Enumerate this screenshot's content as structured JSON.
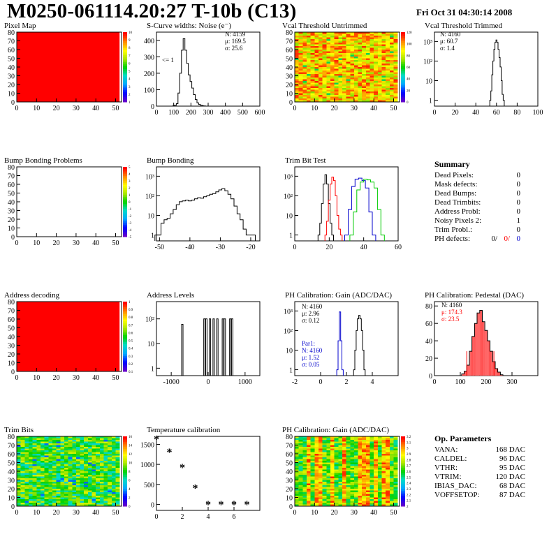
{
  "header": {
    "title": "M0250-061114.20:27 T-10b (C13)",
    "date": "Fri Oct 31 04:30:14 2008"
  },
  "panels": {
    "pixel_map": {
      "title": "Pixel Map",
      "xticks": [
        "0",
        "10",
        "20",
        "30",
        "40",
        "50"
      ],
      "yticks": [
        "0",
        "10",
        "20",
        "30",
        "40",
        "50",
        "60",
        "70",
        "80"
      ],
      "zticks": [
        "1",
        "2",
        "3",
        "4",
        "5",
        "6",
        "7",
        "8",
        "9",
        "10"
      ],
      "fill": "uniform-red"
    },
    "scurve": {
      "title": "S-Curve widths: Noise (e⁻)",
      "stats": [
        "N: 4159",
        "μ: 169.5",
        "σ: 25.6"
      ],
      "annotation": "<= 1",
      "xticks": [
        "0",
        "100",
        "200",
        "300",
        "400",
        "500",
        "600"
      ],
      "yticks": [
        "0",
        "100",
        "200",
        "300",
        "400"
      ]
    },
    "vcal_untrimmed": {
      "title": "Vcal Threshold Untrimmed",
      "xticks": [
        "0",
        "10",
        "20",
        "30",
        "40",
        "50"
      ],
      "yticks": [
        "0",
        "10",
        "20",
        "30",
        "40",
        "50",
        "60",
        "70",
        "80"
      ],
      "zticks": [
        "0",
        "20",
        "40",
        "60",
        "80",
        "100",
        "120"
      ],
      "fill": "noisy-orange"
    },
    "vcal_trimmed": {
      "title": "Vcal Threshold Trimmed",
      "stats": [
        "N: 4160",
        "μ: 60.7",
        "σ: 1.4"
      ],
      "xticks": [
        "0",
        "20",
        "40",
        "60",
        "80",
        "100"
      ],
      "yticks": [
        "1",
        "10",
        "10²",
        "10³"
      ]
    },
    "bump_problems": {
      "title": "Bump Bonding Problems",
      "xticks": [
        "0",
        "10",
        "20",
        "30",
        "40",
        "50"
      ],
      "yticks": [
        "0",
        "10",
        "20",
        "30",
        "40",
        "50",
        "60",
        "70",
        "80"
      ],
      "zticks": [
        "-5",
        "-4",
        "-3",
        "-2",
        "-1",
        "0",
        "1",
        "2",
        "3",
        "4",
        "5"
      ]
    },
    "bump_bonding": {
      "title": "Bump Bonding",
      "xticks": [
        "-50",
        "-40",
        "-30",
        "-20"
      ],
      "yticks": [
        "1",
        "10",
        "10²",
        "10³"
      ]
    },
    "trim_bit_test": {
      "title": "Trim Bit Test",
      "xticks": [
        "0",
        "20",
        "40",
        "60"
      ],
      "yticks": [
        "1",
        "10",
        "10²",
        "10³"
      ]
    },
    "address_decoding": {
      "title": "Address decoding",
      "xticks": [
        "0",
        "10",
        "20",
        "30",
        "40",
        "50"
      ],
      "yticks": [
        "0",
        "10",
        "20",
        "30",
        "40",
        "50",
        "60",
        "70",
        "80"
      ],
      "zticks": [
        "0.1",
        "0.2",
        "0.3",
        "0.4",
        "0.5",
        "0.6",
        "0.7",
        "0.8",
        "0.9",
        "1"
      ],
      "fill": "uniform-red"
    },
    "address_levels": {
      "title": "Address Levels",
      "xticks": [
        "-1000",
        "0",
        "1000"
      ],
      "yticks": [
        "1",
        "10",
        "10²"
      ]
    },
    "ph_gain": {
      "title": "PH Calibration: Gain (ADC/DAC)",
      "stats": [
        "N: 4160",
        "μ: 2.96",
        "σ: 0.12"
      ],
      "stats2": [
        "Par1:",
        "N: 4160",
        "μ: 1.52",
        "σ: 0.05"
      ],
      "xticks": [
        "-2",
        "0",
        "2",
        "4"
      ],
      "yticks": [
        "1",
        "10",
        "10²",
        "10³"
      ]
    },
    "ph_pedestal": {
      "title": "PH Calibration: Pedestal (DAC)",
      "stats": [
        "N: 4160",
        "μ: 174.3",
        "σ: 23.5"
      ],
      "xticks": [
        "0",
        "100",
        "200",
        "300"
      ],
      "yticks": [
        "0",
        "20",
        "40",
        "60",
        "80"
      ]
    },
    "trim_bits": {
      "title": "Trim Bits",
      "xticks": [
        "0",
        "10",
        "20",
        "30",
        "40",
        "50"
      ],
      "yticks": [
        "0",
        "10",
        "20",
        "30",
        "40",
        "50",
        "60",
        "70",
        "80"
      ],
      "zticks": [
        "0",
        "2",
        "4",
        "6",
        "8",
        "10",
        "12",
        "14",
        "16"
      ],
      "fill": "noisy-green"
    },
    "temperature": {
      "title": "Temperature calibration",
      "xticks": [
        "0",
        "2",
        "4",
        "6"
      ],
      "yticks": [
        "0",
        "500",
        "1000",
        "1500"
      ]
    },
    "ph_gain_map": {
      "title": "PH Calibration: Gain (ADC/DAC)",
      "xticks": [
        "0",
        "10",
        "20",
        "30",
        "40",
        "50"
      ],
      "yticks": [
        "0",
        "10",
        "20",
        "30",
        "40",
        "50",
        "60",
        "70",
        "80"
      ],
      "zticks": [
        "2",
        "2.1",
        "2.2",
        "2.3",
        "2.4",
        "2.5",
        "2.6",
        "2.7",
        "2.8",
        "2.9",
        "3",
        "3.1",
        "3.2"
      ],
      "fill": "striped-green"
    }
  },
  "summary": {
    "title": "Summary",
    "rows": [
      {
        "label": "Dead Pixels:",
        "value": "0"
      },
      {
        "label": "Mask defects:",
        "value": "0"
      },
      {
        "label": "Dead Bumps:",
        "value": "0"
      },
      {
        "label": "Dead Trimbits:",
        "value": "0"
      },
      {
        "label": "Address Probl:",
        "value": "0"
      },
      {
        "label": "Noisy Pixels 2:",
        "value": "1"
      },
      {
        "label": "Trim Probl.:",
        "value": "0"
      }
    ],
    "ph_defects": {
      "label": "PH defects:",
      "v1": "0/",
      "v2": "0/",
      "v3": "0"
    }
  },
  "op_params": {
    "title": "Op. Parameters",
    "rows": [
      {
        "label": "VANA:",
        "value": "168 DAC"
      },
      {
        "label": "CALDEL:",
        "value": "96 DAC"
      },
      {
        "label": "VTHR:",
        "value": "95 DAC"
      },
      {
        "label": "VTRIM:",
        "value": "120 DAC"
      },
      {
        "label": "IBIAS_DAC:",
        "value": "68 DAC"
      },
      {
        "label": "VOFFSETOP:",
        "value": "87 DAC"
      }
    ]
  },
  "colors": {
    "red": "#ff0000",
    "green": "#00cc00",
    "blue": "#0000cc",
    "black": "#000000"
  },
  "chart_data": [
    {
      "type": "heatmap",
      "title": "Pixel Map",
      "xlim": [
        0,
        52
      ],
      "ylim": [
        0,
        80
      ],
      "zlim": [
        1,
        10
      ],
      "uniform_value": 10
    },
    {
      "type": "bar",
      "title": "S-Curve widths: Noise (e⁻)",
      "xlim": [
        0,
        600
      ],
      "ylim": [
        0,
        450
      ],
      "x": [
        100,
        110,
        120,
        130,
        140,
        150,
        160,
        170,
        180,
        190,
        200,
        210,
        220,
        230,
        240,
        250,
        260,
        270,
        280
      ],
      "values": [
        2,
        5,
        15,
        80,
        200,
        340,
        410,
        340,
        260,
        190,
        150,
        110,
        70,
        40,
        20,
        10,
        5,
        2,
        1
      ]
    },
    {
      "type": "heatmap",
      "title": "Vcal Threshold Untrimmed",
      "xlim": [
        0,
        52
      ],
      "ylim": [
        0,
        80
      ],
      "zlim": [
        0,
        120
      ]
    },
    {
      "type": "bar",
      "title": "Vcal Threshold Trimmed",
      "xlim": [
        0,
        100
      ],
      "ylog": true,
      "ylim": [
        0.5,
        3000
      ],
      "x": [
        54,
        55,
        56,
        57,
        58,
        59,
        60,
        61,
        62,
        63,
        64,
        65,
        66,
        67
      ],
      "values": [
        1,
        3,
        20,
        100,
        400,
        900,
        1200,
        900,
        400,
        150,
        50,
        10,
        2,
        1
      ]
    },
    {
      "type": "heatmap",
      "title": "Bump Bonding Problems",
      "xlim": [
        0,
        52
      ],
      "ylim": [
        0,
        80
      ],
      "zlim": [
        -5,
        5
      ]
    },
    {
      "type": "bar",
      "title": "Bump Bonding",
      "xlim": [
        -51,
        -17
      ],
      "ylog": true,
      "ylim": [
        0.5,
        3000
      ],
      "x": [
        -51,
        -50,
        -49,
        -48,
        -47,
        -46,
        -45,
        -44,
        -43,
        -42,
        -41,
        -40,
        -39,
        -38,
        -37,
        -36,
        -35,
        -34,
        -33,
        -32,
        -31,
        -30,
        -29,
        -28,
        -27,
        -26,
        -25,
        -24,
        -23,
        -22,
        -21,
        -20,
        -19
      ],
      "values": [
        1,
        1,
        4,
        6,
        7,
        12,
        20,
        35,
        50,
        55,
        60,
        55,
        60,
        70,
        80,
        75,
        90,
        100,
        120,
        130,
        160,
        200,
        230,
        180,
        120,
        70,
        30,
        12,
        6,
        2,
        1,
        1,
        1
      ]
    },
    {
      "type": "line",
      "title": "Trim Bit Test",
      "xlim": [
        0,
        60
      ],
      "ylog": true,
      "ylim": [
        0.5,
        3000
      ],
      "series": [
        {
          "color": "#000000",
          "x": [
            14,
            15,
            16,
            17,
            18,
            19,
            20,
            21,
            22
          ],
          "values": [
            1,
            4,
            40,
            400,
            1200,
            400,
            40,
            4,
            1
          ]
        },
        {
          "color": "#ff0000",
          "x": [
            18,
            19,
            20,
            21,
            22,
            23,
            24,
            25,
            26,
            27
          ],
          "values": [
            1,
            5,
            60,
            400,
            900,
            600,
            100,
            10,
            2,
            1
          ]
        },
        {
          "color": "#0000cc",
          "x": [
            30,
            32,
            34,
            36,
            38,
            40,
            42,
            44,
            46
          ],
          "values": [
            1,
            20,
            300,
            700,
            800,
            600,
            250,
            15,
            1
          ]
        },
        {
          "color": "#00cc00",
          "x": [
            33,
            35,
            37,
            39,
            41,
            43,
            45,
            47,
            49,
            51
          ],
          "values": [
            1,
            15,
            200,
            500,
            700,
            650,
            500,
            250,
            20,
            1
          ]
        }
      ]
    },
    {
      "type": "heatmap",
      "title": "Address decoding",
      "xlim": [
        0,
        52
      ],
      "ylim": [
        0,
        80
      ],
      "zlim": [
        0.1,
        1
      ],
      "uniform_value": 1
    },
    {
      "type": "bar",
      "title": "Address Levels",
      "xlim": [
        -1400,
        1400
      ],
      "ylog": true,
      "ylim": [
        0.5,
        500
      ],
      "x": [
        -700,
        -100,
        -50,
        50,
        150,
        250,
        400,
        450,
        600,
        650
      ],
      "values": [
        60,
        100,
        100,
        100,
        100,
        100,
        100,
        100,
        100,
        100
      ]
    },
    {
      "type": "bar",
      "title": "PH Calibration: Gain (ADC/DAC)",
      "xlim": [
        -2,
        6
      ],
      "ylog": true,
      "ylim": [
        0.5,
        3000
      ],
      "series": [
        {
          "name": "Gain",
          "color": "#000000",
          "x": [
            2.6,
            2.7,
            2.8,
            2.9,
            3.0,
            3.1,
            3.2,
            3.3,
            3.4
          ],
          "values": [
            1,
            10,
            100,
            400,
            600,
            400,
            100,
            10,
            1
          ]
        },
        {
          "name": "Par1",
          "color": "#0000cc",
          "x": [
            1.3,
            1.4,
            1.5,
            1.6,
            1.7
          ],
          "values": [
            1,
            30,
            900,
            30,
            1
          ]
        }
      ]
    },
    {
      "type": "bar",
      "title": "PH Calibration: Pedestal (DAC)",
      "xlim": [
        0,
        400
      ],
      "ylim": [
        0,
        85
      ],
      "x": [
        110,
        120,
        130,
        140,
        150,
        160,
        170,
        180,
        190,
        200,
        210,
        220,
        230,
        240,
        250,
        260
      ],
      "values": [
        2,
        5,
        12,
        28,
        45,
        60,
        72,
        75,
        62,
        52,
        40,
        28,
        16,
        8,
        4,
        1
      ]
    },
    {
      "type": "heatmap",
      "title": "Trim Bits",
      "xlim": [
        0,
        52
      ],
      "ylim": [
        0,
        80
      ],
      "zlim": [
        0,
        16
      ]
    },
    {
      "type": "scatter",
      "title": "Temperature calibration",
      "xlim": [
        0,
        8
      ],
      "ylim": [
        -150,
        1700
      ],
      "x": [
        0,
        1,
        2,
        3,
        4,
        5,
        6,
        7
      ],
      "values": [
        1600,
        1280,
        900,
        380,
        -30,
        -30,
        -30,
        -30
      ]
    },
    {
      "type": "heatmap",
      "title": "PH Calibration: Gain (ADC/DAC)",
      "xlim": [
        0,
        52
      ],
      "ylim": [
        0,
        80
      ],
      "zlim": [
        2,
        3.2
      ]
    }
  ]
}
